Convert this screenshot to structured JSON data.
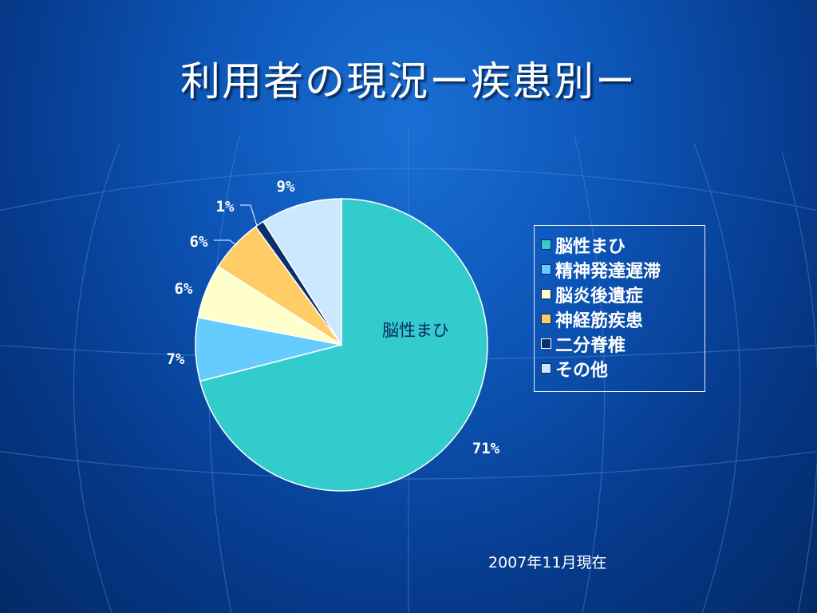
{
  "slide": {
    "title": "利用者の現況ー疾患別ー",
    "footnote": "2007年11月現在"
  },
  "chart_data": {
    "type": "pie",
    "categories": [
      "脳性まひ",
      "精神発達遅滞",
      "脳炎後遺症",
      "神経筋疾患",
      "二分脊椎",
      "その他"
    ],
    "values": [
      71,
      7,
      6,
      6,
      1,
      9
    ],
    "labels": [
      "71%",
      "7%",
      "6%",
      "6%",
      "1%",
      "9%"
    ],
    "colors": [
      "#33cccc",
      "#66ccff",
      "#ffffcc",
      "#ffcc66",
      "#0b2f6b",
      "#cce8ff"
    ],
    "start_angle": "12 o'clock",
    "direction": "clockwise",
    "in_slice_label": "脳性まひ",
    "legend_position": "right"
  }
}
